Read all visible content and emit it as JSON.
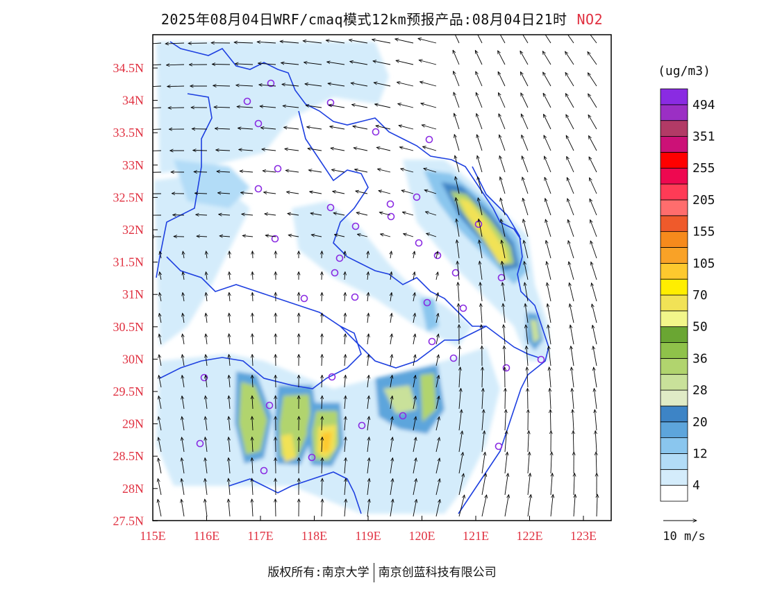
{
  "title": {
    "main": "2025年08月04日WRF/cmaq模式12km预报产品:08月04日21时",
    "species": "NO2"
  },
  "colors": {
    "lat_label": "#e03040",
    "lon_label": "#e03040",
    "boundary": "#1d3fe0",
    "city_marker": "#8a2be2",
    "frame": "#000000"
  },
  "axes": {
    "lat_labels": [
      "34.5N",
      "34N",
      "33.5N",
      "33N",
      "32.5N",
      "32N",
      "31.5N",
      "31N",
      "30.5N",
      "30N",
      "29.5N",
      "29N",
      "28.5N",
      "28N",
      "27.5N"
    ],
    "lon_labels": [
      "115E",
      "116E",
      "117E",
      "118E",
      "119E",
      "120E",
      "121E",
      "122E",
      "123E"
    ]
  },
  "legend": {
    "unit": "(ug/m3)",
    "colors": [
      "#ffffff",
      "#d4ecfb",
      "#b2dcf7",
      "#8ac6ee",
      "#5da5dc",
      "#3d84c6",
      "#e0ebc6",
      "#c9e19a",
      "#b1d46e",
      "#8fc24a",
      "#6aa633",
      "#f2f68a",
      "#f1e256",
      "#ffee00",
      "#fdc92e",
      "#f9a227",
      "#f68a1c",
      "#ef5a2b",
      "#ff6d6d",
      "#ff3b56",
      "#ee0850",
      "#ff0000",
      "#cc1177",
      "#b23a66",
      "#9b2fc4",
      "#8a2be2"
    ],
    "labels": [
      "4",
      "12",
      "20",
      "28",
      "36",
      "50",
      "70",
      "105",
      "155",
      "205",
      "255",
      "351",
      "494"
    ]
  },
  "wind_ref": {
    "label": "10 m/s"
  },
  "footer": {
    "left": "版权所有:南京大学",
    "right": "南京创蓝科技有限公司"
  }
}
